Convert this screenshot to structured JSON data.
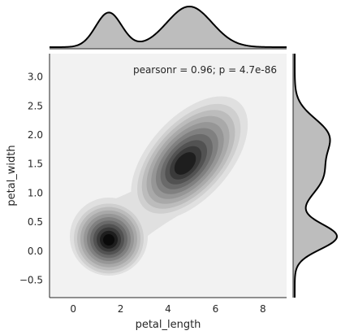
{
  "chart_data": {
    "type": "jointplot-kde",
    "xlabel": "petal_length",
    "ylabel": "petal_width",
    "annotation": "pearsonr = 0.96; p = 4.7e-86",
    "xlim": [
      -1,
      9
    ],
    "ylim": [
      -0.8,
      3.4
    ],
    "xticks": [
      0,
      2,
      4,
      6,
      8
    ],
    "yticks": [
      -0.5,
      0.0,
      0.5,
      1.0,
      1.5,
      2.0,
      2.5,
      3.0
    ],
    "ytick_labels": [
      "−0.5",
      "0.0",
      "0.5",
      "1.0",
      "1.5",
      "2.0",
      "2.5",
      "3.0"
    ],
    "background_color": "#f2f2f2",
    "fill_color": "#bdbdbd",
    "line_color": "#000000",
    "joint_clusters": [
      {
        "center_x": 1.5,
        "center_y": 0.25,
        "sd_x": 0.55,
        "sd_y": 0.28,
        "rho": 0.0
      },
      {
        "center_x": 4.9,
        "center_y": 1.6,
        "sd_x": 1.0,
        "sd_y": 0.48,
        "rho": 0.6
      }
    ],
    "joint_peak_locations": [
      {
        "x": 1.5,
        "y": 0.22
      },
      {
        "x": 4.7,
        "y": 1.5
      }
    ],
    "marginal_x": {
      "peaks": [
        1.5,
        4.9
      ],
      "components": [
        {
          "mean": 1.5,
          "sd": 0.55,
          "weight": 0.33
        },
        {
          "mean": 4.9,
          "sd": 0.95,
          "weight": 0.67
        }
      ]
    },
    "marginal_y": {
      "peaks": [
        0.25,
        1.5
      ],
      "components": [
        {
          "mean": 0.25,
          "sd": 0.22,
          "weight": 0.33
        },
        {
          "mean": 1.3,
          "sd": 0.35,
          "weight": 0.34
        },
        {
          "mean": 2.0,
          "sd": 0.3,
          "weight": 0.33
        }
      ]
    },
    "contour_shades": [
      "#e0e0e0",
      "#cfcfcf",
      "#bcbcbc",
      "#a9a9a9",
      "#969696",
      "#808080",
      "#6a6a6a",
      "#525252",
      "#3a3a3a",
      "#1e1e1e",
      "#0a0a0a"
    ]
  }
}
